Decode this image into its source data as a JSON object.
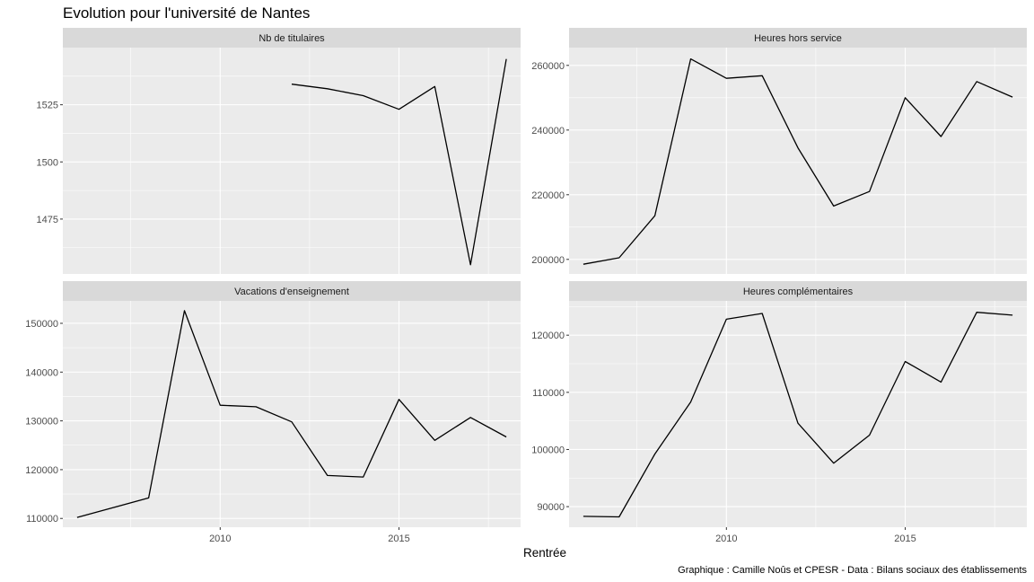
{
  "title": "Evolution pour l'université de Nantes",
  "caption": "Graphique : Camille Noûs et CPESR - Data : Bilans sociaux des établissements",
  "chart_data": {
    "type": "line",
    "title": "Evolution pour l'université de Nantes",
    "xlabel": "Rentrée",
    "ylabel": "",
    "xlim": [
      2005.6,
      2018.4
    ],
    "x_ticks": [
      2010,
      2015
    ],
    "x_tick_labels": [
      "2010",
      "2015"
    ],
    "grid": true,
    "legend": "none",
    "line_color": "#000000",
    "panels": [
      {
        "name": "Nb de titulaires",
        "x": [
          2012,
          2013,
          2014,
          2015,
          2016,
          2017,
          2018
        ],
        "values": [
          1534,
          1532,
          1529,
          1523,
          1533,
          1455,
          1545
        ],
        "ylim": [
          1451,
          1550
        ],
        "y_ticks": [
          1475,
          1500,
          1525
        ],
        "y_tick_labels": [
          "1475",
          "1500",
          "1525"
        ]
      },
      {
        "name": "Heures hors service",
        "x": [
          2006,
          2007,
          2008,
          2009,
          2010,
          2011,
          2012,
          2013,
          2014,
          2015,
          2016,
          2017,
          2018
        ],
        "values": [
          198500,
          200500,
          213500,
          262000,
          256000,
          256800,
          234500,
          216500,
          221000,
          250000,
          238000,
          255000,
          250200
        ],
        "ylim": [
          195500,
          265500
        ],
        "y_ticks": [
          200000,
          220000,
          240000,
          260000
        ],
        "y_tick_labels": [
          "200000",
          "220000",
          "240000",
          "260000"
        ]
      },
      {
        "name": "Vacations d'enseignement",
        "x": [
          2006,
          2007,
          2008,
          2009,
          2010,
          2011,
          2012,
          2013,
          2014,
          2015,
          2016,
          2017,
          2018
        ],
        "values": [
          110200,
          112200,
          114200,
          152600,
          133200,
          132900,
          129800,
          118800,
          118500,
          134400,
          126000,
          130700,
          126700
        ],
        "ylim": [
          108200,
          154600
        ],
        "y_ticks": [
          110000,
          120000,
          130000,
          140000,
          150000
        ],
        "y_tick_labels": [
          "110000",
          "120000",
          "130000",
          "140000",
          "150000"
        ]
      },
      {
        "name": "Heures complémentaires",
        "x": [
          2006,
          2007,
          2008,
          2009,
          2010,
          2011,
          2012,
          2013,
          2014,
          2015,
          2016,
          2017,
          2018
        ],
        "values": [
          88300,
          88200,
          99200,
          108300,
          122800,
          123800,
          104600,
          97600,
          102500,
          115400,
          111800,
          124000,
          123500
        ],
        "ylim": [
          86400,
          126000
        ],
        "y_ticks": [
          90000,
          100000,
          110000,
          120000
        ],
        "y_tick_labels": [
          "90000",
          "100000",
          "110000",
          "120000"
        ]
      }
    ]
  }
}
